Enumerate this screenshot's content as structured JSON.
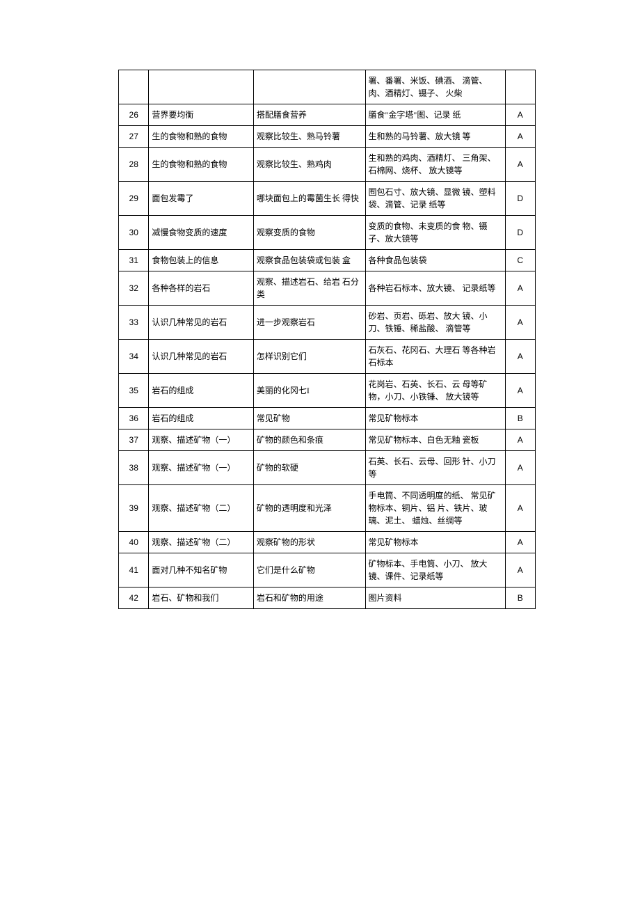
{
  "table": {
    "columns": [
      {
        "key": "num",
        "class": "col-num"
      },
      {
        "key": "lesson",
        "class": "col-lesson"
      },
      {
        "key": "activity",
        "class": "col-activity"
      },
      {
        "key": "material",
        "class": "col-material"
      },
      {
        "key": "type",
        "class": "col-type"
      }
    ],
    "rows": [
      {
        "num": "",
        "lesson": "",
        "activity": "",
        "material": "署、番署、米饭、碘酒、 滴管、肉、酒精灯、镊子、 火柴",
        "type": ""
      },
      {
        "num": "26",
        "lesson": "营界要均衡",
        "activity": "搭配膳食营养",
        "material": "膳食\"金字塔\"图、记录 纸",
        "type": "A"
      },
      {
        "num": "27",
        "lesson": "生的食物和熟的食物",
        "activity": "观察比较生、熟马铃薯",
        "material": "生和熟的马铃薯、放大镜 等",
        "type": "A"
      },
      {
        "num": "28",
        "lesson": "生的食物和熟的食物",
        "activity": "观察比较生、熟鸡肉",
        "material": "生和熟的鸡肉、酒精灯、 三角架、石棉网、烧杯、 放大镜等",
        "type": "A"
      },
      {
        "num": "29",
        "lesson": "面包发霉了",
        "activity": "哪块面包上的霉菌生长 得快",
        "material": "囿包石寸、放大镜、显微 镜、塑料袋、滴管、记录 纸等",
        "type": "D"
      },
      {
        "num": "30",
        "lesson": "减慢食物变质的速度",
        "activity": "观察变质的食物",
        "material": "变质的食物、未变质的食 物、镊子、放大镜等",
        "type": "D"
      },
      {
        "num": "31",
        "lesson": "食物包装上的信息",
        "activity": "观察食品包装袋或包装 盒",
        "material": "各种食品包装袋",
        "type": "C"
      },
      {
        "num": "32",
        "lesson": "各种各样的岩石",
        "activity": "观察、描述岩石、给岩 石分类",
        "material": "各种岩石标本、放大镜、 记录纸等",
        "type": "A"
      },
      {
        "num": "33",
        "lesson": "认识几种常见的岩石",
        "activity": "进一步观察岩石",
        "material": "砂岩、页岩、砾岩、放大 镜、小刀、铁锤、稀盐酸、 滴管等",
        "type": "A"
      },
      {
        "num": "34",
        "lesson": "认识几种常见的岩石",
        "activity": "怎样识别它们",
        "material": "石灰石、花冈石、大理石 等各种岩石标本",
        "type": "A"
      },
      {
        "num": "35",
        "lesson": "岩石的组成",
        "activity": "美丽的化冈七I",
        "material": "花岗岩、石英、长石、云 母等矿物，小刀、小铁锤、 放大镜等",
        "type": "A"
      },
      {
        "num": "36",
        "lesson": "岩石的组成",
        "activity": "常见矿物",
        "material": "常见矿物标本",
        "type": "B"
      },
      {
        "num": "37",
        "lesson": "观察、描述矿物（一）",
        "activity": "矿物的颜色和条痕",
        "material": "常见矿物标本、白色无釉 瓷板",
        "type": "A"
      },
      {
        "num": "38",
        "lesson": "观察、描述矿物（一）",
        "activity": "矿物的软硬",
        "material": "石英、长石、云母、回形 针、小刀等",
        "type": "A"
      },
      {
        "num": "39",
        "lesson": "观察、描述矿物（二）",
        "activity": "矿物的透明度和光泽",
        "material": "手电筒、不同透明度的纸、 常见矿物标本、铜片、铝 片、铁片、玻璃、泥土、 蜡烛、丝绸等",
        "type": "A"
      },
      {
        "num": "40",
        "lesson": "观察、描述矿物（二）",
        "activity": "观察矿物的形状",
        "material": "常见矿物标本",
        "type": "A"
      },
      {
        "num": "41",
        "lesson": "面对几种不知名矿物",
        "activity": "它们是什么矿物",
        "material": "矿物标本、手电筒、小刀、 放大镜、课件、记录纸等",
        "type": "A"
      },
      {
        "num": "42",
        "lesson": "岩石、矿物和我们",
        "activity": "岩石和矿物的用途",
        "material": "图片资料",
        "type": "B"
      }
    ]
  }
}
